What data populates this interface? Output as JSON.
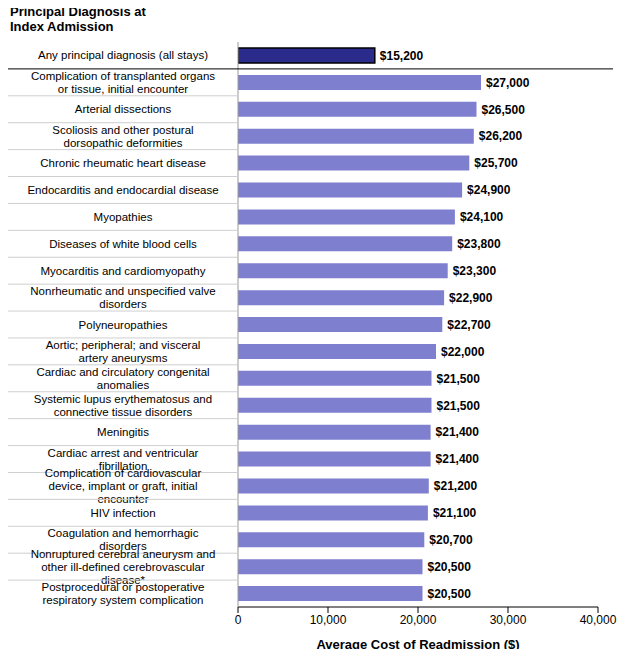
{
  "chart_data": {
    "type": "bar",
    "orientation": "horizontal",
    "ylabel": "Principal Diagnosis at Index Admission",
    "xlabel": "Average Cost of Readmission ($)",
    "categories": [
      "Any principal diagnosis (all stays)",
      "Complication of transplanted organs or tissue, initial encounter",
      "Arterial dissections",
      "Scoliosis and other postural dorsopathic deformities",
      "Chronic rheumatic heart disease",
      "Endocarditis and endocardial disease",
      "Myopathies",
      "Diseases of white blood cells",
      "Myocarditis and cardiomyopathy",
      "Nonrheumatic and unspecified valve disorders",
      "Polyneuropathies",
      "Aortic; peripheral; and visceral artery aneurysms",
      "Cardiac and circulatory congenital anomalies",
      "Systemic lupus erythematosus and connective tissue disorders",
      "Meningitis",
      "Cardiac arrest and ventricular fibrillation",
      "Complication of cardiovascular device, implant or graft, initial encounter",
      "HIV infection",
      "Coagulation and hemorrhagic disorders",
      "Nonruptured cerebral aneurysm and other ill-defined cerebrovascular disease*",
      "Postprocedural or postoperative respiratory system complication"
    ],
    "values": [
      15200,
      27000,
      26500,
      26200,
      25700,
      24900,
      24100,
      23800,
      23300,
      22900,
      22700,
      22000,
      21500,
      21500,
      21400,
      21400,
      21200,
      21100,
      20700,
      20500,
      20500
    ],
    "value_labels": [
      "$15,200",
      "$27,000",
      "$26,500",
      "$26,200",
      "$25,700",
      "$24,900",
      "$24,100",
      "$23,800",
      "$23,300",
      "$22,900",
      "$22,700",
      "$22,000",
      "$21,500",
      "$21,500",
      "$21,400",
      "$21,400",
      "$21,200",
      "$21,100",
      "$20,700",
      "$20,500",
      "$20,500"
    ],
    "colors": [
      "#2b2b8c",
      "#7f7fcf",
      "#7f7fcf",
      "#7f7fcf",
      "#7f7fcf",
      "#7f7fcf",
      "#7f7fcf",
      "#7f7fcf",
      "#7f7fcf",
      "#7f7fcf",
      "#7f7fcf",
      "#7f7fcf",
      "#7f7fcf",
      "#7f7fcf",
      "#7f7fcf",
      "#7f7fcf",
      "#7f7fcf",
      "#7f7fcf",
      "#7f7fcf",
      "#7f7fcf",
      "#7f7fcf"
    ],
    "xlim": [
      0,
      40000
    ],
    "xticks": [
      0,
      {
        "value": 10000,
        "label": "10,000"
      },
      {
        "value": 20000,
        "label": "20,000"
      },
      {
        "value": 30000,
        "label": "30,000"
      },
      {
        "value": 40000,
        "label": "40,000"
      }
    ],
    "data_labels": true,
    "grid": false
  }
}
